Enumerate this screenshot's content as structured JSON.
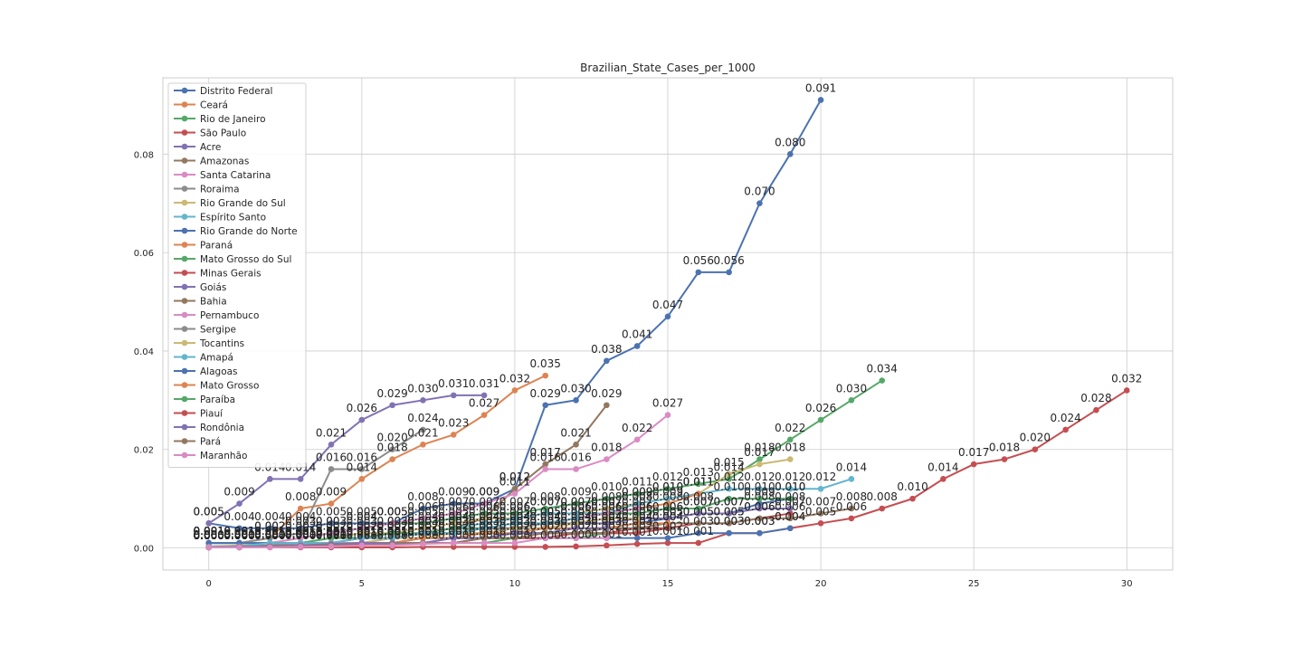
{
  "chart_data": {
    "type": "line",
    "title": "Brazilian_State_Cases_per_1000",
    "xlabel": "",
    "ylabel": "",
    "xlim": [
      -1.5,
      31.5
    ],
    "ylim": [
      -0.0045,
      0.0955
    ],
    "x_ticks": [
      0,
      5,
      10,
      15,
      20,
      25,
      30
    ],
    "x_tick_labels": [
      "0",
      "5",
      "10",
      "15",
      "20",
      "25",
      "30"
    ],
    "y_ticks": [
      0.0,
      0.02,
      0.04,
      0.06,
      0.08
    ],
    "y_tick_labels": [
      "0.00",
      "0.02",
      "0.04",
      "0.06",
      "0.08"
    ],
    "grid": true,
    "legend_position": "upper-left",
    "label_format": "%.3f",
    "series": [
      {
        "name": "Distrito Federal",
        "color": "#4c72b0",
        "values": [
          0.005,
          0.004,
          0.004,
          0.004,
          0.005,
          0.005,
          0.005,
          0.008,
          0.009,
          0.009,
          0.012,
          0.029,
          0.03,
          0.038,
          0.041,
          0.047,
          0.056,
          0.056,
          0.07,
          0.08,
          0.091
        ]
      },
      {
        "name": "Ceará",
        "color": "#dd8452",
        "values": [
          0.001,
          0.001,
          0.002,
          0.008,
          0.009,
          0.014,
          0.018,
          0.021,
          0.023,
          0.027,
          0.032,
          0.035
        ]
      },
      {
        "name": "Rio de Janeiro",
        "color": "#55a868",
        "values": [
          0.001,
          0.001,
          0.001,
          0.002,
          0.003,
          0.004,
          0.005,
          0.005,
          0.006,
          0.007,
          0.007,
          0.008,
          0.009,
          0.01,
          0.011,
          0.012,
          0.013,
          0.014,
          0.018,
          0.022,
          0.026,
          0.03,
          0.034
        ]
      },
      {
        "name": "São Paulo",
        "color": "#c44e52",
        "values": [
          0.0001,
          0.0001,
          0.0001,
          0.0001,
          0.0001,
          0.0001,
          0.0001,
          0.0002,
          0.0002,
          0.0002,
          0.0002,
          0.0002,
          0.0003,
          0.0005,
          0.0008,
          0.001,
          0.001,
          0.003,
          0.003,
          0.004,
          0.005,
          0.006,
          0.008,
          0.01,
          0.014,
          0.017,
          0.018,
          0.02,
          0.024,
          0.028,
          0.032
        ]
      },
      {
        "name": "Acre",
        "color": "#8172b3",
        "values": [
          0.005,
          0.009,
          0.014,
          0.014,
          0.021,
          0.026,
          0.029,
          0.03,
          0.031,
          0.031
        ]
      },
      {
        "name": "Amazonas",
        "color": "#937860",
        "values": [
          0.0002,
          0.0002,
          0.0002,
          0.0005,
          0.0005,
          0.001,
          0.002,
          0.003,
          0.004,
          0.006,
          0.012,
          0.017,
          0.021,
          0.029
        ]
      },
      {
        "name": "Santa Catarina",
        "color": "#da8bc3",
        "values": [
          0.001,
          0.001,
          0.001,
          0.002,
          0.003,
          0.004,
          0.005,
          0.006,
          0.007,
          0.009,
          0.011,
          0.016,
          0.016,
          0.018,
          0.022,
          0.027
        ]
      },
      {
        "name": "Roraima",
        "color": "#8c8c8c",
        "values": [
          0.001,
          0.001,
          0.002,
          0.003,
          0.016,
          0.016,
          0.02,
          0.024
        ]
      },
      {
        "name": "Rio Grande do Sul",
        "color": "#ccb974",
        "values": [
          0.0003,
          0.0005,
          0.001,
          0.001,
          0.002,
          0.003,
          0.003,
          0.004,
          0.005,
          0.006,
          0.006,
          0.007,
          0.007,
          0.008,
          0.009,
          0.01,
          0.011,
          0.015,
          0.017,
          0.018
        ]
      },
      {
        "name": "Espírito Santo",
        "color": "#64b5cd",
        "values": [
          0.001,
          0.001,
          0.001,
          0.001,
          0.002,
          0.002,
          0.002,
          0.003,
          0.004,
          0.005,
          0.006,
          0.007,
          0.007,
          0.007,
          0.009,
          0.01,
          0.011,
          0.012,
          0.012,
          0.012,
          0.012,
          0.014
        ]
      },
      {
        "name": "Rio Grande do Norte",
        "color": "#4c72b0",
        "values": [
          0.001,
          0.001,
          0.001,
          0.001,
          0.001,
          0.001,
          0.001,
          0.002,
          0.002,
          0.002,
          0.003,
          0.003,
          0.003,
          0.004,
          0.005,
          0.006,
          0.007,
          0.007,
          0.009,
          0.01
        ]
      },
      {
        "name": "Paraná",
        "color": "#dd8452",
        "values": [
          0.0002,
          0.0003,
          0.0005,
          0.001,
          0.001,
          0.002,
          0.002,
          0.003,
          0.003,
          0.004,
          0.004,
          0.005,
          0.006,
          0.007,
          0.008,
          0.009,
          0.011
        ]
      },
      {
        "name": "Mato Grosso do Sul",
        "color": "#55a868",
        "values": [
          0.0002,
          0.0003,
          0.0005,
          0.001,
          0.002,
          0.002,
          0.003,
          0.003,
          0.004,
          0.004,
          0.005,
          0.005,
          0.006,
          0.007,
          0.007,
          0.008,
          0.008,
          0.01,
          0.01,
          0.01
        ]
      },
      {
        "name": "Minas Gerais",
        "color": "#c44e52",
        "values": [
          0.0001,
          0.0001,
          0.0002,
          0.0003,
          0.0005,
          0.0008,
          0.001,
          0.001,
          0.001,
          0.002,
          0.002,
          0.002,
          0.003,
          0.003,
          0.004,
          0.004,
          0.005,
          0.005,
          0.006,
          0.007
        ]
      },
      {
        "name": "Goiás",
        "color": "#8172b3",
        "values": [
          0.0002,
          0.0003,
          0.0005,
          0.001,
          0.001,
          0.002,
          0.002,
          0.003,
          0.003,
          0.003,
          0.004,
          0.004,
          0.005,
          0.005,
          0.006,
          0.006,
          0.007,
          0.007,
          0.008,
          0.008
        ]
      },
      {
        "name": "Bahia",
        "color": "#937860",
        "values": [
          0.0001,
          0.0002,
          0.0003,
          0.0005,
          0.0008,
          0.001,
          0.001,
          0.002,
          0.002,
          0.002,
          0.003,
          0.003,
          0.003,
          0.004,
          0.004,
          0.005,
          0.005,
          0.005,
          0.006,
          0.006,
          0.007,
          0.008
        ]
      },
      {
        "name": "Pernambuco",
        "color": "#da8bc3",
        "values": [
          0.0001,
          0.0001,
          0.0003,
          0.0005,
          0.0008,
          0.001,
          0.002,
          0.002,
          0.003,
          0.003,
          0.004,
          0.005,
          0.006,
          0.007,
          0.008
        ]
      },
      {
        "name": "Sergipe",
        "color": "#8c8c8c",
        "values": [
          0.0002,
          0.0003,
          0.0005,
          0.001,
          0.001,
          0.002,
          0.002,
          0.003,
          0.003,
          0.004,
          0.004,
          0.005,
          0.005,
          0.006
        ]
      },
      {
        "name": "Tocantins",
        "color": "#ccb974",
        "values": [
          0.0001,
          0.0002,
          0.0003,
          0.0005,
          0.001,
          0.001,
          0.002,
          0.002,
          0.003,
          0.003,
          0.004,
          0.004,
          0.005,
          0.006,
          0.006
        ]
      },
      {
        "name": "Amapá",
        "color": "#64b5cd",
        "values": [
          0.0002,
          0.0003,
          0.001,
          0.001,
          0.001,
          0.002,
          0.002,
          0.003,
          0.003,
          0.004,
          0.005,
          0.005,
          0.006
        ]
      },
      {
        "name": "Alagoas",
        "color": "#4c72b0",
        "values": [
          0.0001,
          0.0002,
          0.0003,
          0.0005,
          0.0005,
          0.001,
          0.001,
          0.001,
          0.002,
          0.002,
          0.002,
          0.002,
          0.002,
          0.002,
          0.002,
          0.002,
          0.003,
          0.003,
          0.003,
          0.004
        ]
      },
      {
        "name": "Mato Grosso",
        "color": "#dd8452",
        "values": [
          0.0001,
          0.0002,
          0.0003,
          0.0005,
          0.0008,
          0.001,
          0.001,
          0.002,
          0.002,
          0.003,
          0.003,
          0.004,
          0.004,
          0.004,
          0.005,
          0.005
        ]
      },
      {
        "name": "Paraíba",
        "color": "#55a868",
        "values": [
          0.0001,
          0.0001,
          0.0002,
          0.0003,
          0.0005,
          0.0008,
          0.001,
          0.001,
          0.001,
          0.001,
          0.002,
          0.002,
          0.002,
          0.003,
          0.003,
          0.004
        ]
      },
      {
        "name": "Piauí",
        "color": "#c44e52",
        "values": [
          0.0001,
          0.0002,
          0.0003,
          0.0005,
          0.0005,
          0.0008,
          0.001,
          0.001,
          0.001,
          0.002,
          0.002,
          0.002,
          0.003,
          0.003,
          0.003,
          0.004
        ]
      },
      {
        "name": "Rondônia",
        "color": "#8172b3",
        "values": [
          0.0001,
          0.0002,
          0.0003,
          0.0005,
          0.0008,
          0.001,
          0.001,
          0.001,
          0.002,
          0.002,
          0.003,
          0.003,
          0.004,
          0.004
        ]
      },
      {
        "name": "Pará",
        "color": "#937860",
        "values": [
          0.0001,
          0.0001,
          0.0002,
          0.0003,
          0.0005,
          0.0005,
          0.0008,
          0.001,
          0.001,
          0.002,
          0.002,
          0.003,
          0.003,
          0.003
        ]
      },
      {
        "name": "Maranhão",
        "color": "#da8bc3",
        "values": [
          0.0001,
          0.0001,
          0.0001,
          0.0002,
          0.0003,
          0.0005,
          0.0005,
          0.0008,
          0.001,
          0.001,
          0.001,
          0.002,
          0.002,
          0.002
        ]
      }
    ]
  }
}
